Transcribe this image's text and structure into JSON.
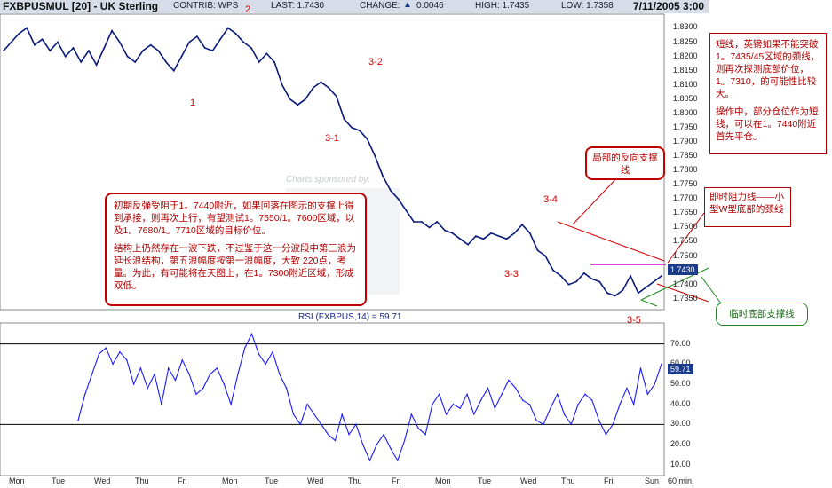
{
  "header": {
    "symbol": "FXBPUSMUL [20] - UK Sterling",
    "contrib": "CONTRIB: WPS",
    "last": "LAST: 1.7430",
    "change": "CHANGE:",
    "change_icon": "up-triangle-icon",
    "change_value": "0.0046",
    "high": "HIGH: 1.7435",
    "low": "LOW: 1.7358",
    "datetime": "7/11/2005 3:00"
  },
  "watermark": "Charts sponsored by:",
  "price_tag": "1.7430",
  "rsi_title": "RSI (FXBPUS,14) = 59.71",
  "rsi_tag": "59.71",
  "wave_labels": [
    "2",
    "1",
    "3-2",
    "3-1",
    "3-4",
    "3-3",
    "3-5"
  ],
  "annotations": {
    "top_right": {
      "p1": "短线，英镑如果不能突破1。7435/45区域的颈线，则再次探测底部价位，1。7310，的可能性比较大。",
      "p2": "操作中，部分仓位作为短线，可以在1。7440附近首先平仓。"
    },
    "local_support": "局部的反向支撑线",
    "resistance": "即时阻力线——小型W型底部的颈线",
    "bottom_support": "临时底部支撑线",
    "main": {
      "p1": "初期反弹受阻于1。7440附近，如果回落在图示的支撑上得到承接，则再次上行，有望测试1。7550/1。7600区域，以及1。7680/1。7710区域的目标价位。",
      "p2": "结构上仍然存在一波下跌，不过鉴于这一分波段中第三浪为延长浪结构，第五浪幅度按第一浪幅度，大致 220点，考量。为此，有可能将在天图上，在1。7300附近区域，形成双低。"
    }
  },
  "colors": {
    "price_line": "#0a1a7a",
    "rsi_line": "#1a1aff",
    "annotation": "#c00000",
    "support_green": "#1c8a1c",
    "resistance_magenta": "#e000e0",
    "downtrend_red": "#d00000",
    "header_bg": "#d6dde8"
  },
  "chart_data": [
    {
      "type": "line",
      "title": "FXBPUSMUL [20] - UK Sterling",
      "interval": "60 min.",
      "x_tick_labels": [
        "Mon",
        "Tue",
        "Wed",
        "Thu",
        "Fri",
        "Mon",
        "Tue",
        "Wed",
        "Thu",
        "Fri",
        "Mon",
        "Tue",
        "Wed",
        "Thu",
        "Fri",
        "Sun",
        "60 min."
      ],
      "y_tick_labels": [
        "1.8300",
        "1.8250",
        "1.8200",
        "1.8150",
        "1.8100",
        "1.8050",
        "1.8000",
        "1.7950",
        "1.7900",
        "1.7850",
        "1.7800",
        "1.7750",
        "1.7700",
        "1.7650",
        "1.7600",
        "1.7550",
        "1.7500",
        "1.7450",
        "1.7400",
        "1.7350"
      ],
      "ylim": [
        1.7315,
        1.8345
      ],
      "grid": false,
      "series": [
        {
          "values": [
            1.822,
            1.825,
            1.828,
            1.83,
            1.824,
            1.826,
            1.822,
            1.825,
            1.82,
            1.823,
            1.818,
            1.822,
            1.817,
            1.823,
            1.829,
            1.825,
            1.82,
            1.818,
            1.822,
            1.824,
            1.822,
            1.818,
            1.815,
            1.82,
            1.825,
            1.827,
            1.823,
            1.822,
            1.826,
            1.83,
            1.828,
            1.825,
            1.823,
            1.818,
            1.821,
            1.818,
            1.81,
            1.805,
            1.803,
            1.805,
            1.809,
            1.811,
            1.809,
            1.806,
            1.798,
            1.795,
            1.794,
            1.791,
            1.785,
            1.778,
            1.773,
            1.77,
            1.766,
            1.762,
            1.762,
            1.76,
            1.762,
            1.759,
            1.758,
            1.756,
            1.754,
            1.757,
            1.756,
            1.758,
            1.757,
            1.756,
            1.758,
            1.761,
            1.758,
            1.752,
            1.75,
            1.745,
            1.743,
            1.74,
            1.741,
            1.744,
            1.742,
            1.741,
            1.737,
            1.736,
            1.738,
            1.743,
            1.737,
            1.739,
            1.741,
            1.743
          ]
        }
      ]
    },
    {
      "type": "line",
      "title": "RSI (FXBPUS,14) = 59.71",
      "y_tick_labels": [
        "70.00",
        "60.00",
        "50.00",
        "40.00",
        "30.00",
        "20.00",
        "10.00"
      ],
      "ylim": [
        5,
        80
      ],
      "reference_lines": [
        30,
        70
      ],
      "grid": false,
      "series": [
        {
          "values": [
            32,
            45,
            55,
            65,
            68,
            60,
            66,
            62,
            50,
            58,
            48,
            55,
            40,
            58,
            52,
            62,
            55,
            45,
            48,
            55,
            58,
            50,
            40,
            55,
            68,
            75,
            65,
            60,
            66,
            55,
            48,
            35,
            30,
            40,
            35,
            30,
            25,
            22,
            35,
            25,
            30,
            20,
            12,
            20,
            25,
            18,
            12,
            22,
            35,
            28,
            25,
            40,
            45,
            35,
            40,
            38,
            45,
            35,
            42,
            48,
            38,
            45,
            52,
            48,
            42,
            40,
            32,
            30,
            38,
            45,
            35,
            30,
            40,
            45,
            42,
            32,
            25,
            30,
            40,
            48,
            40,
            58,
            45,
            50,
            60
          ]
        }
      ]
    }
  ]
}
